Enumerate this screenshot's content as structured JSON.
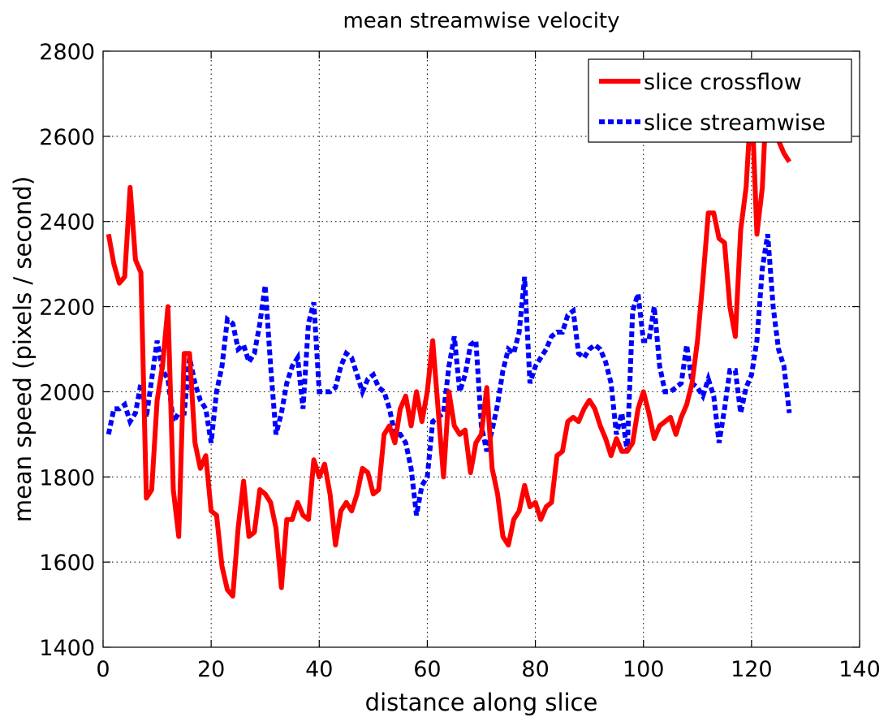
{
  "chart_data": {
    "type": "line",
    "title": "mean streamwise velocity",
    "xlabel": "distance along slice",
    "ylabel": "mean speed (pixels / second)",
    "xlim": [
      0,
      140
    ],
    "ylim": [
      1400,
      2800
    ],
    "xticks": [
      0,
      20,
      40,
      60,
      80,
      100,
      120,
      140
    ],
    "yticks": [
      1400,
      1600,
      1800,
      2000,
      2200,
      2400,
      2600,
      2800
    ],
    "grid": true,
    "legend_position": "top-right",
    "series": [
      {
        "name": "slice crossflow",
        "color": "#ff0000",
        "style": "solid",
        "x": [
          1,
          2,
          3,
          4,
          5,
          6,
          7,
          8,
          9,
          10,
          11,
          12,
          13,
          14,
          15,
          16,
          17,
          18,
          19,
          20,
          21,
          22,
          23,
          24,
          25,
          26,
          27,
          28,
          29,
          30,
          31,
          32,
          33,
          34,
          35,
          36,
          37,
          38,
          39,
          40,
          41,
          42,
          43,
          44,
          45,
          46,
          47,
          48,
          49,
          50,
          51,
          52,
          53,
          54,
          55,
          56,
          57,
          58,
          59,
          60,
          61,
          62,
          63,
          64,
          65,
          66,
          67,
          68,
          69,
          70,
          71,
          72,
          73,
          74,
          75,
          76,
          77,
          78,
          79,
          80,
          81,
          82,
          83,
          84,
          85,
          86,
          87,
          88,
          89,
          90,
          91,
          92,
          93,
          94,
          95,
          96,
          97,
          98,
          99,
          100,
          101,
          102,
          103,
          104,
          105,
          106,
          107,
          108,
          109,
          110,
          111,
          112,
          113,
          114,
          115,
          116,
          117,
          118,
          119,
          120,
          121,
          122,
          123,
          124,
          125,
          126,
          127
        ],
        "y": [
          2370,
          2300,
          2255,
          2270,
          2480,
          2310,
          2280,
          1750,
          1770,
          1980,
          2060,
          2200,
          1770,
          1660,
          2090,
          2090,
          1880,
          1820,
          1850,
          1720,
          1710,
          1590,
          1535,
          1520,
          1680,
          1790,
          1660,
          1670,
          1770,
          1760,
          1740,
          1680,
          1540,
          1700,
          1700,
          1740,
          1710,
          1700,
          1840,
          1800,
          1830,
          1760,
          1640,
          1720,
          1740,
          1720,
          1760,
          1820,
          1810,
          1760,
          1770,
          1900,
          1920,
          1880,
          1960,
          1990,
          1920,
          2000,
          1930,
          2000,
          2120,
          1960,
          1800,
          2000,
          1920,
          1900,
          1910,
          1810,
          1880,
          1900,
          2010,
          1820,
          1760,
          1660,
          1640,
          1700,
          1720,
          1780,
          1730,
          1740,
          1700,
          1730,
          1740,
          1850,
          1860,
          1930,
          1940,
          1930,
          1960,
          1980,
          1960,
          1920,
          1890,
          1850,
          1890,
          1860,
          1860,
          1880,
          1960,
          2000,
          1950,
          1890,
          1920,
          1930,
          1940,
          1900,
          1940,
          1970,
          2020,
          2120,
          2260,
          2420,
          2420,
          2360,
          2350,
          2200,
          2130,
          2380,
          2480,
          2700,
          2370,
          2480,
          2750,
          2680,
          2590,
          2560,
          2540
        ]
      },
      {
        "name": "slice streamwise",
        "color": "#0000ff",
        "style": "dashed",
        "x": [
          1,
          2,
          3,
          4,
          5,
          6,
          7,
          8,
          9,
          10,
          11,
          12,
          13,
          14,
          15,
          16,
          17,
          18,
          19,
          20,
          21,
          22,
          23,
          24,
          25,
          26,
          27,
          28,
          29,
          30,
          31,
          32,
          33,
          34,
          35,
          36,
          37,
          38,
          39,
          40,
          41,
          42,
          43,
          44,
          45,
          46,
          47,
          48,
          49,
          50,
          51,
          52,
          53,
          54,
          55,
          56,
          57,
          58,
          59,
          60,
          61,
          62,
          63,
          64,
          65,
          66,
          67,
          68,
          69,
          70,
          71,
          72,
          73,
          74,
          75,
          76,
          77,
          78,
          79,
          80,
          81,
          82,
          83,
          84,
          85,
          86,
          87,
          88,
          89,
          90,
          91,
          92,
          93,
          94,
          95,
          96,
          97,
          98,
          99,
          100,
          101,
          102,
          103,
          104,
          105,
          106,
          107,
          108,
          109,
          110,
          111,
          112,
          113,
          114,
          115,
          116,
          117,
          118,
          119,
          120,
          121,
          122,
          123,
          124,
          125,
          126,
          127
        ],
        "y": [
          1900,
          1960,
          1960,
          1970,
          1930,
          1950,
          2020,
          1940,
          2030,
          2120,
          2050,
          2030,
          1930,
          1950,
          1950,
          2080,
          2020,
          1980,
          1960,
          1880,
          2000,
          2060,
          2170,
          2160,
          2100,
          2110,
          2070,
          2090,
          2160,
          2250,
          2060,
          1900,
          1950,
          2020,
          2060,
          2080,
          1960,
          2160,
          2210,
          2000,
          2000,
          2000,
          2010,
          2060,
          2090,
          2080,
          2040,
          2000,
          2030,
          2040,
          2010,
          2000,
          1960,
          1900,
          1900,
          1880,
          1820,
          1710,
          1780,
          1800,
          1930,
          1940,
          1950,
          2060,
          2130,
          2000,
          2040,
          2110,
          2120,
          1920,
          1860,
          1910,
          1970,
          2050,
          2100,
          2090,
          2140,
          2270,
          2020,
          2060,
          2080,
          2100,
          2130,
          2140,
          2140,
          2180,
          2190,
          2090,
          2080,
          2100,
          2110,
          2100,
          2070,
          2020,
          1900,
          1950,
          1860,
          2190,
          2230,
          2120,
          2120,
          2200,
          2060,
          2000,
          2000,
          2010,
          2020,
          2110,
          2020,
          2010,
          1990,
          2030,
          1990,
          1880,
          1960,
          2050,
          2050,
          1950,
          2010,
          2040,
          2120,
          2290,
          2370,
          2200,
          2100,
          2060,
          1950
        ]
      }
    ]
  }
}
